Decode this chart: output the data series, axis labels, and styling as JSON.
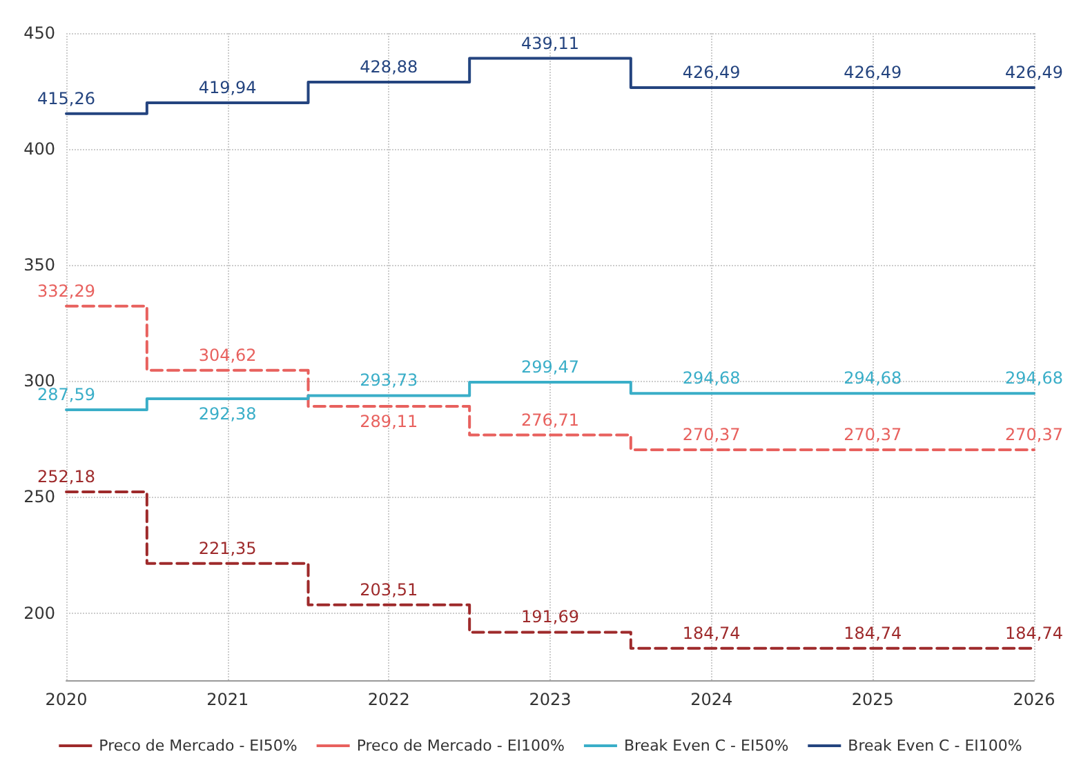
{
  "chart_data": {
    "type": "step",
    "x": [
      2020,
      2021,
      2022,
      2023,
      2024,
      2025,
      2026
    ],
    "xlim": [
      2020,
      2026
    ],
    "xticks": [
      2020,
      2021,
      2022,
      2023,
      2024,
      2025,
      2026
    ],
    "ylim": [
      171,
      450
    ],
    "yticks": [
      200,
      250,
      300,
      350,
      400,
      450
    ],
    "grid": true,
    "legend": "bottom",
    "series": [
      {
        "name": "Preco de Mercado - EI50%",
        "color": "#9e2a2b",
        "line_style": "dashed",
        "values": [
          252.18,
          221.35,
          203.51,
          191.69,
          184.74,
          184.74,
          184.74
        ],
        "value_labels": [
          "252,18",
          "221,35",
          "203,51",
          "191,69",
          "184,74",
          "184,74",
          "184,74"
        ]
      },
      {
        "name": "Preco de Mercado - EI100%",
        "color": "#e8615e",
        "line_style": "dashed",
        "values": [
          332.29,
          304.62,
          289.11,
          276.71,
          270.37,
          270.37,
          270.37
        ],
        "value_labels": [
          "332,29",
          "304,62",
          "289,11",
          "276,71",
          "270,37",
          "270,37",
          "270,37"
        ]
      },
      {
        "name": "Break Even C - EI50%",
        "color": "#3aaec8",
        "line_style": "solid",
        "values": [
          287.59,
          292.38,
          293.73,
          299.47,
          294.68,
          294.68,
          294.68
        ],
        "value_labels": [
          "287,59",
          "292,38",
          "293,73",
          "299,47",
          "294,68",
          "294,68",
          "294,68"
        ]
      },
      {
        "name": "Break Even C - EI100%",
        "color": "#24447f",
        "line_style": "solid",
        "values": [
          415.26,
          419.94,
          428.88,
          439.11,
          426.49,
          426.49,
          426.49
        ],
        "value_labels": [
          "415,26",
          "419,94",
          "428,88",
          "439,11",
          "426,49",
          "426,49",
          "426,49"
        ]
      }
    ]
  }
}
